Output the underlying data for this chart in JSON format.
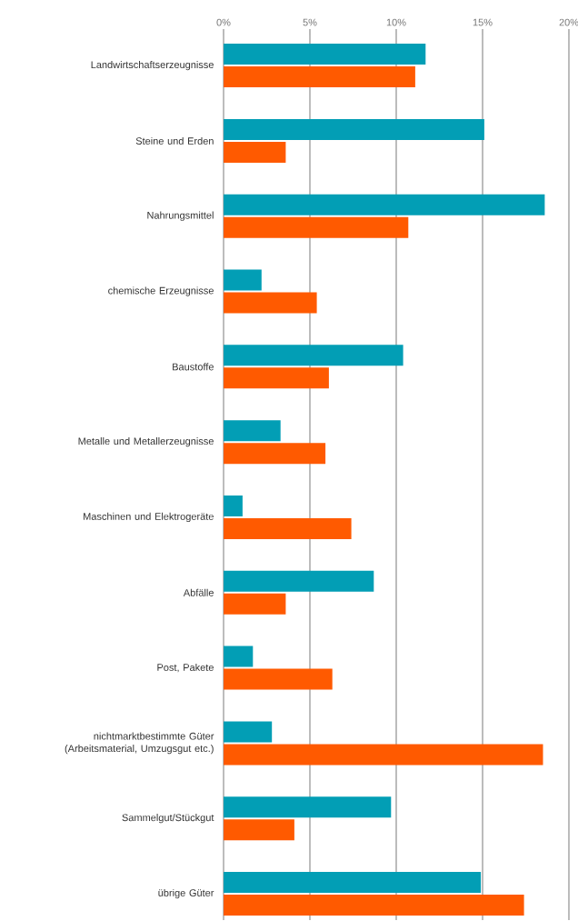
{
  "chart_data": {
    "type": "bar",
    "orientation": "horizontal",
    "categories": [
      "Landwirtschaftserzeugnisse",
      "Steine und Erden",
      "Nahrungsmittel",
      "chemische Erzeugnisse",
      "Baustoffe",
      "Metalle und Metallerzeugnisse",
      "Maschinen und Elektrogeräte",
      "Abfälle",
      "Post, Pakete",
      "nichtmarktbestimmte Güter (Arbeitsmaterial, Umzugsgut etc.)",
      "Sammelgut/Stückgut",
      "übrige Güter"
    ],
    "series": [
      {
        "color": "#029eb5",
        "values": [
          11.7,
          15.1,
          18.6,
          2.2,
          10.4,
          3.3,
          1.1,
          8.7,
          1.7,
          2.8,
          9.7,
          14.9
        ]
      },
      {
        "color": "#ff5a00",
        "values": [
          11.1,
          3.6,
          10.7,
          5.4,
          6.1,
          5.9,
          7.4,
          3.6,
          6.3,
          18.5,
          4.1,
          17.4
        ]
      }
    ],
    "xlim": [
      0,
      20
    ],
    "xticks": [
      {
        "value": 0,
        "label": "0%"
      },
      {
        "value": 5,
        "label": "5%"
      },
      {
        "value": 10,
        "label": "10%"
      },
      {
        "value": 15,
        "label": "15%"
      },
      {
        "value": 20,
        "label": "20%"
      }
    ],
    "grid": "x"
  }
}
